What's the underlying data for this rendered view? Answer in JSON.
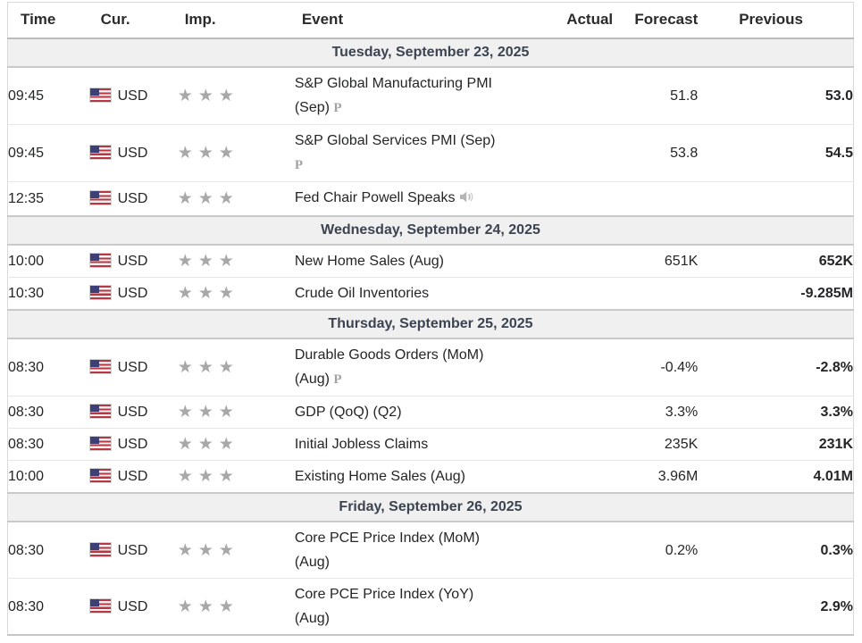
{
  "header": {
    "columns": [
      {
        "key": "time",
        "label": "Time"
      },
      {
        "key": "cur",
        "label": "Cur."
      },
      {
        "key": "imp",
        "label": "Imp."
      },
      {
        "key": "event",
        "label": "Event"
      },
      {
        "key": "actual",
        "label": "Actual"
      },
      {
        "key": "forecast",
        "label": "Forecast"
      },
      {
        "key": "previous",
        "label": "Previous"
      }
    ]
  },
  "icons": {
    "flag": "us-flag-icon",
    "importance_star": "★",
    "preliminary_marker": "P",
    "speaker": "speaker-icon"
  },
  "colors": {
    "day_header_bg": "#f0f0f0",
    "day_header_text": "#3b4450",
    "star_gray": "#a8a8a8",
    "flag_red": "#b93642",
    "flag_blue": "#3d4077",
    "row_border": "#e6e6e6",
    "section_border": "#c9c9c9",
    "table_border": "#d9d9d9",
    "header_text": "#2b2b2b",
    "body_text": "#232526"
  },
  "sections": [
    {
      "date_label": "Tuesday, September 23, 2025",
      "rows": [
        {
          "time": "09:45",
          "currency": "USD",
          "importance": 3,
          "event": "S&P Global Manufacturing PMI (Sep)",
          "marker": "preliminary",
          "actual": "",
          "forecast": "51.8",
          "previous": "53.0"
        },
        {
          "time": "09:45",
          "currency": "USD",
          "importance": 3,
          "event": "S&P Global Services PMI (Sep)",
          "marker": "preliminary",
          "actual": "",
          "forecast": "53.8",
          "previous": "54.5"
        },
        {
          "time": "12:35",
          "currency": "USD",
          "importance": 3,
          "event": "Fed Chair Powell Speaks",
          "marker": "speech",
          "actual": "",
          "forecast": "",
          "previous": ""
        }
      ]
    },
    {
      "date_label": "Wednesday, September 24, 2025",
      "rows": [
        {
          "time": "10:00",
          "currency": "USD",
          "importance": 3,
          "event": "New Home Sales (Aug)",
          "marker": null,
          "actual": "",
          "forecast": "651K",
          "previous": "652K"
        },
        {
          "time": "10:30",
          "currency": "USD",
          "importance": 3,
          "event": "Crude Oil Inventories",
          "marker": null,
          "actual": "",
          "forecast": "",
          "previous": "-9.285M"
        }
      ]
    },
    {
      "date_label": "Thursday, September 25, 2025",
      "rows": [
        {
          "time": "08:30",
          "currency": "USD",
          "importance": 3,
          "event": "Durable Goods Orders (MoM) (Aug)",
          "marker": "preliminary",
          "actual": "",
          "forecast": "-0.4%",
          "previous": "-2.8%"
        },
        {
          "time": "08:30",
          "currency": "USD",
          "importance": 3,
          "event": "GDP (QoQ) (Q2)",
          "marker": null,
          "actual": "",
          "forecast": "3.3%",
          "previous": "3.3%"
        },
        {
          "time": "08:30",
          "currency": "USD",
          "importance": 3,
          "event": "Initial Jobless Claims",
          "marker": null,
          "actual": "",
          "forecast": "235K",
          "previous": "231K"
        },
        {
          "time": "10:00",
          "currency": "USD",
          "importance": 3,
          "event": "Existing Home Sales (Aug)",
          "marker": null,
          "actual": "",
          "forecast": "3.96M",
          "previous": "4.01M"
        }
      ]
    },
    {
      "date_label": "Friday, September 26, 2025",
      "rows": [
        {
          "time": "08:30",
          "currency": "USD",
          "importance": 3,
          "event": "Core PCE Price Index (MoM) (Aug)",
          "marker": null,
          "actual": "",
          "forecast": "0.2%",
          "previous": "0.3%"
        },
        {
          "time": "08:30",
          "currency": "USD",
          "importance": 3,
          "event": "Core PCE Price Index (YoY) (Aug)",
          "marker": null,
          "actual": "",
          "forecast": "",
          "previous": "2.9%"
        }
      ]
    }
  ]
}
